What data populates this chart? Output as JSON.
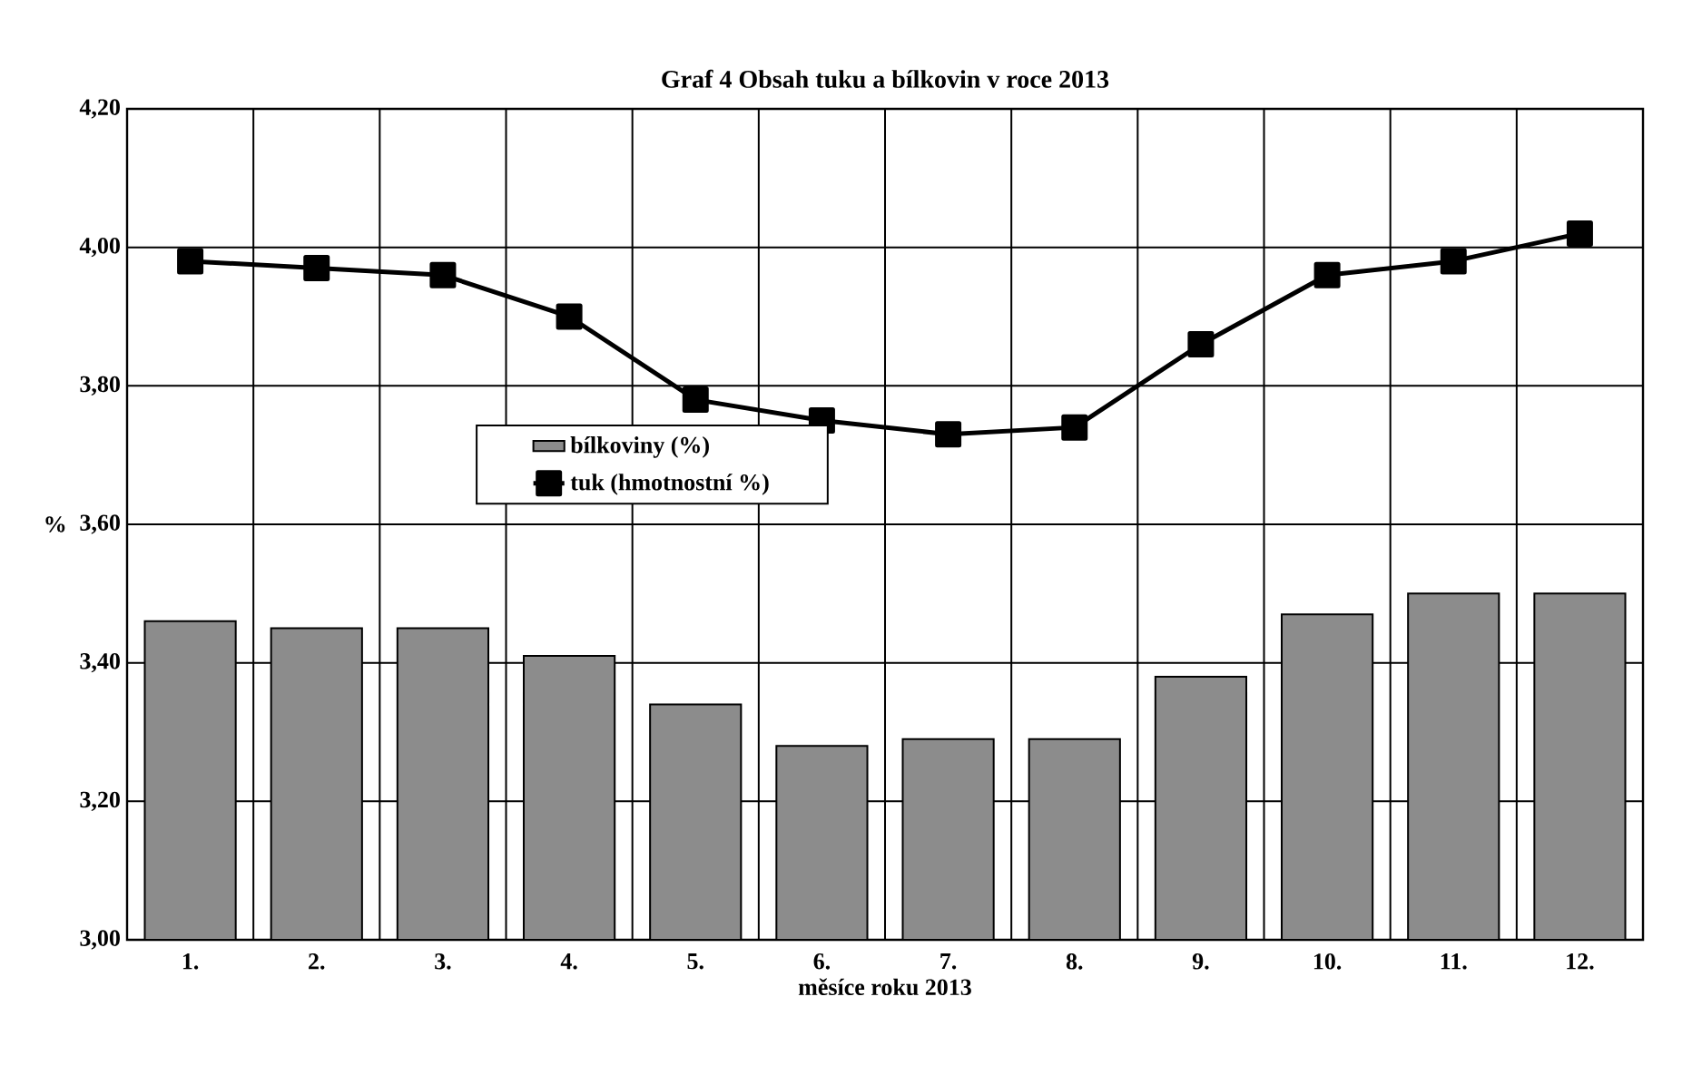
{
  "chart_data": {
    "type": "bar",
    "title": "Graf 4 Obsah tuku a bílkovin  v roce 2013",
    "xlabel": "měsíce roku 2013",
    "ylabel": "%",
    "categories": [
      "1.",
      "2.",
      "3.",
      "4.",
      "5.",
      "6.",
      "7.",
      "8.",
      "9.",
      "10.",
      "11.",
      "12."
    ],
    "series": [
      {
        "name": "bílkoviny (%)",
        "color": "#8c8c8c",
        "values": [
          3.46,
          3.45,
          3.45,
          3.41,
          3.34,
          3.28,
          3.29,
          3.29,
          3.38,
          3.47,
          3.5,
          3.5
        ]
      },
      {
        "type": "line",
        "name": "tuk (hmotnostní %)",
        "color": "#000000",
        "marker": "square",
        "line_style": "solid",
        "values": [
          3.98,
          3.97,
          3.96,
          3.9,
          3.78,
          3.75,
          3.73,
          3.74,
          3.86,
          3.96,
          3.98,
          4.02
        ]
      }
    ],
    "ylim": [
      3.0,
      4.2
    ],
    "yticks": [
      {
        "value": 3.0,
        "label": "3,00"
      },
      {
        "value": 3.2,
        "label": "3,20"
      },
      {
        "value": 3.4,
        "label": "3,40"
      },
      {
        "value": 3.6,
        "label": "3,60"
      },
      {
        "value": 3.8,
        "label": "3,80"
      },
      {
        "value": 4.0,
        "label": "4,00"
      },
      {
        "value": 4.2,
        "label": "4,20"
      }
    ],
    "grid": true,
    "legend": "center"
  }
}
